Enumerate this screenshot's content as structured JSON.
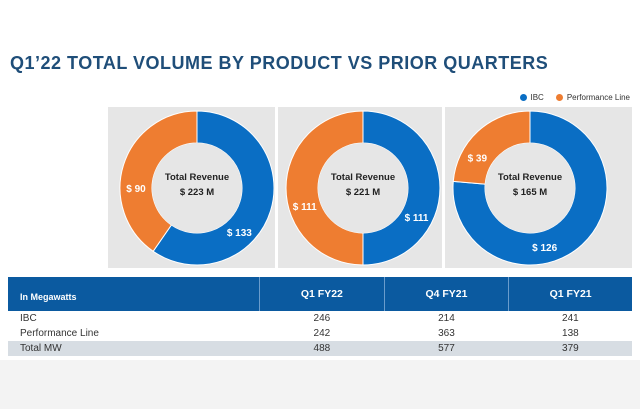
{
  "title": "Q1’22 TOTAL VOLUME BY PRODUCT VS PRIOR QUARTERS",
  "legend": [
    {
      "name": "IBC",
      "color": "#0a6ec4"
    },
    {
      "name": "Performance Line",
      "color": "#ee7d31"
    }
  ],
  "chart_data": [
    {
      "type": "pie",
      "variant": "donut",
      "center_label": "Total Revenue",
      "center_value": "$ 223 M",
      "slices": [
        {
          "name": "IBC",
          "value": 133,
          "label": "$ 133"
        },
        {
          "name": "Performance Line",
          "value": 90,
          "label": "$ 90"
        }
      ]
    },
    {
      "type": "pie",
      "variant": "donut",
      "center_label": "Total Revenue",
      "center_value": "$ 221 M",
      "slices": [
        {
          "name": "IBC",
          "value": 111,
          "label": "$ 111"
        },
        {
          "name": "Performance Line",
          "value": 111,
          "label": "$ 111"
        }
      ]
    },
    {
      "type": "pie",
      "variant": "donut",
      "center_label": "Total Revenue",
      "center_value": "$ 165 M",
      "slices": [
        {
          "name": "IBC",
          "value": 126,
          "label": "$ 126"
        },
        {
          "name": "Performance Line",
          "value": 39,
          "label": "$ 39"
        }
      ]
    }
  ],
  "table": {
    "headers": [
      "In Megawatts",
      "Q1 FY22",
      "Q4 FY21",
      "Q1 FY21"
    ],
    "rows": [
      [
        "IBC",
        "246",
        "214",
        "241"
      ],
      [
        "Performance Line",
        "242",
        "363",
        "138"
      ],
      [
        "Total MW",
        "488",
        "577",
        "379"
      ]
    ]
  }
}
